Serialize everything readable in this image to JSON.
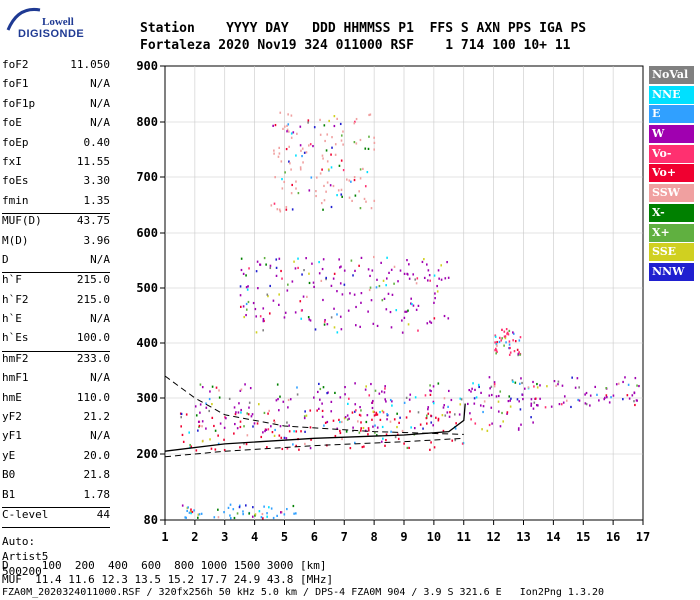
{
  "logo": {
    "line1": "Lowell",
    "line2": "DIGISONDE"
  },
  "header": {
    "row1": "Station    YYYY DAY   DDD HHMMSS P1  FFS S AXN PPS IGA PS",
    "row2": "Fortaleza 2020 Nov19 324 011000 RSF    1 714 100 10+ 11"
  },
  "params_group1": [
    {
      "name": "foF2",
      "value": "11.050"
    },
    {
      "name": "foF1",
      "value": "N/A"
    },
    {
      "name": "foF1p",
      "value": "N/A"
    },
    {
      "name": "foE",
      "value": "N/A"
    },
    {
      "name": "foEp",
      "value": "0.40"
    },
    {
      "name": "fxI",
      "value": "11.55"
    },
    {
      "name": "foEs",
      "value": "3.30"
    },
    {
      "name": "fmin",
      "value": "1.35"
    }
  ],
  "params_group2": [
    {
      "name": "MUF(D)",
      "value": "43.75"
    },
    {
      "name": "M(D)",
      "value": "3.96"
    },
    {
      "name": "D",
      "value": "N/A"
    }
  ],
  "params_group3": [
    {
      "name": "h`F",
      "value": "215.0"
    },
    {
      "name": "h`F2",
      "value": "215.0"
    },
    {
      "name": "h`E",
      "value": "N/A"
    },
    {
      "name": "h`Es",
      "value": "100.0"
    }
  ],
  "params_group4": [
    {
      "name": "hmF2",
      "value": "233.0"
    },
    {
      "name": "hmF1",
      "value": "N/A"
    },
    {
      "name": "hmE",
      "value": "110.0"
    },
    {
      "name": "yF2",
      "value": "21.2"
    },
    {
      "name": "yF1",
      "value": "N/A"
    },
    {
      "name": "yE",
      "value": "20.0"
    },
    {
      "name": "B0",
      "value": "21.8"
    },
    {
      "name": "B1",
      "value": "1.78"
    }
  ],
  "params_group5": [
    {
      "name": "C-level",
      "value": "44"
    }
  ],
  "auto": {
    "line1": "Auto:",
    "line2": "Artist5",
    "line3": "500200"
  },
  "legend": [
    {
      "label": "NoVal",
      "color": "#808080"
    },
    {
      "label": "NNE",
      "color": "#00e0ff"
    },
    {
      "label": "E",
      "color": "#30a0ff"
    },
    {
      "label": "W",
      "color": "#a000b0"
    },
    {
      "label": "Vo-",
      "color": "#ff3070"
    },
    {
      "label": "Vo+",
      "color": "#f00030"
    },
    {
      "label": "SSW",
      "color": "#f0a0a0"
    },
    {
      "label": "X-",
      "color": "#008000"
    },
    {
      "label": "X+",
      "color": "#60b040"
    },
    {
      "label": "SSE",
      "color": "#d0d020"
    },
    {
      "label": "NNW",
      "color": "#2020d0"
    }
  ],
  "bottom": {
    "d_row": "D     100  200  400  600  800 1000 1500 3000 [km]",
    "muf_row": "MUF  11.4 11.6 12.3 13.5 15.2 17.7 24.9 43.8 [MHz]",
    "footer": "FZA0M_2020324011000.RSF / 320fx256h 50 kHz 5.0 km / DPS-4 FZA0M 904 / 3.9 S 321.6 E   Ion2Png 1.3.20"
  },
  "chart_data": {
    "type": "scatter",
    "title": "",
    "xlabel": "",
    "ylabel": "",
    "xlim": [
      1,
      17
    ],
    "ylim": [
      80,
      900
    ],
    "xticks": [
      "1",
      "2",
      "3",
      "4",
      "5",
      "6",
      "7",
      "8",
      "9",
      "10",
      "11",
      "12",
      "13",
      "14",
      "15",
      "16",
      "17"
    ],
    "yticks": [
      "80",
      "200",
      "300",
      "400",
      "500",
      "600",
      "700",
      "800",
      "900"
    ],
    "y_axis_scale": "nonlinear (virtual height, km)",
    "x_axis_units": "frequency (MHz)",
    "grid": true,
    "legend_position": "right",
    "echo_regions": [
      {
        "name": "F-trace-o",
        "freq": [
          1.5,
          11.0
        ],
        "height": [
          205,
          280
        ],
        "color_key": "Vo+"
      },
      {
        "name": "F-trace-x",
        "freq": [
          2.0,
          13.5
        ],
        "height": [
          240,
          330
        ],
        "color_key": "W"
      },
      {
        "name": "F-spread-2hop",
        "freq": [
          3.5,
          10.5
        ],
        "height": [
          420,
          560
        ],
        "color_key": "W"
      },
      {
        "name": "F-spread-3hop",
        "freq": [
          4.5,
          8.0
        ],
        "height": [
          640,
          820
        ],
        "color_key": "SSW"
      },
      {
        "name": "Es",
        "freq": [
          1.5,
          5.5
        ],
        "height": [
          85,
          110
        ],
        "color_key": "E"
      },
      {
        "name": "high-freq-spread",
        "freq": [
          11.0,
          16.9
        ],
        "height": [
          285,
          340
        ],
        "color_key": "W"
      },
      {
        "name": "patch-12",
        "freq": [
          12.0,
          12.9
        ],
        "height": [
          380,
          430
        ],
        "color_key": "Vo-"
      }
    ],
    "profile_curve": [
      [
        1.0,
        205
      ],
      [
        3.0,
        218
      ],
      [
        6.0,
        228
      ],
      [
        9.0,
        234
      ],
      [
        10.5,
        240
      ],
      [
        11.0,
        260
      ],
      [
        11.05,
        290
      ]
    ],
    "upper_dashed": [
      [
        1.0,
        340
      ],
      [
        2.0,
        300
      ],
      [
        3.0,
        270
      ],
      [
        5.0,
        250
      ],
      [
        8.0,
        240
      ],
      [
        11.0,
        235
      ]
    ],
    "lower_dashed": [
      [
        1.0,
        195
      ],
      [
        3.0,
        205
      ],
      [
        6.0,
        215
      ],
      [
        9.0,
        222
      ],
      [
        11.0,
        228
      ]
    ]
  }
}
